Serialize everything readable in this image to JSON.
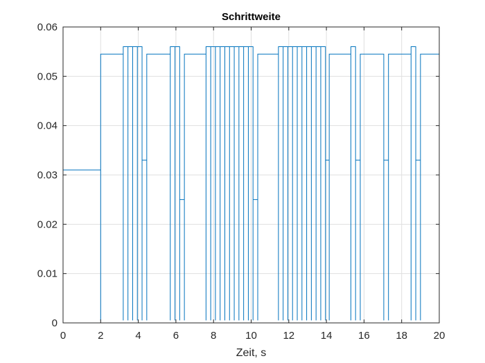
{
  "chart_data": {
    "type": "line",
    "title": "Schrittweite",
    "xlabel": "Zeit, s",
    "ylabel": "",
    "xlim": [
      0,
      20
    ],
    "ylim": [
      0,
      0.06
    ],
    "xticks": [
      0,
      2,
      4,
      6,
      8,
      10,
      12,
      14,
      16,
      18,
      20
    ],
    "yticks": [
      0,
      0.01,
      0.02,
      0.03,
      0.04,
      0.05,
      0.06
    ],
    "xtick_labels": [
      "0",
      "2",
      "4",
      "6",
      "8",
      "10",
      "12",
      "14",
      "16",
      "18",
      "20"
    ],
    "ytick_labels": [
      "0",
      "0.01",
      "0.02",
      "0.03",
      "0.04",
      "0.05",
      "0.06"
    ],
    "grid": true,
    "line_color": "#0072BD",
    "series": [
      {
        "x": [
          0,
          0,
          2.0,
          2.0,
          2.0,
          3.2,
          3.2,
          3.2,
          3.45,
          3.45,
          3.45,
          3.7,
          3.7,
          3.7,
          3.95,
          3.95,
          3.95,
          4.2,
          4.2,
          4.2,
          4.45,
          4.45,
          4.45,
          5.7,
          5.7,
          5.7,
          5.95,
          5.95,
          5.95,
          6.2,
          6.2,
          6.2,
          6.45,
          6.45,
          6.45,
          7.6,
          7.6,
          7.6,
          7.85,
          7.85,
          7.85,
          8.1,
          8.1,
          8.1,
          8.35,
          8.35,
          8.35,
          8.6,
          8.6,
          8.6,
          8.85,
          8.85,
          8.85,
          9.1,
          9.1,
          9.1,
          9.35,
          9.35,
          9.35,
          9.6,
          9.6,
          9.6,
          9.85,
          9.85,
          9.85,
          10.1,
          10.1,
          10.1,
          10.35,
          10.35,
          10.35,
          11.45,
          11.45,
          11.45,
          11.7,
          11.7,
          11.7,
          11.95,
          11.95,
          11.95,
          12.2,
          12.2,
          12.2,
          12.45,
          12.45,
          12.45,
          12.7,
          12.7,
          12.7,
          12.95,
          12.95,
          12.95,
          13.2,
          13.2,
          13.2,
          13.45,
          13.45,
          13.45,
          13.7,
          13.7,
          13.7,
          13.95,
          13.95,
          13.95,
          14.15,
          14.15,
          14.15,
          15.3,
          15.3,
          15.3,
          15.55,
          15.55,
          15.55,
          15.8,
          15.8,
          15.8,
          17.05,
          17.05,
          17.05,
          17.3,
          17.3,
          17.3,
          18.5,
          18.5,
          18.5,
          18.75,
          18.75,
          18.75,
          19.0,
          19.0,
          19.0,
          20
        ],
        "y": [
          0.01,
          0.031,
          0.031,
          0.0005,
          0.0545,
          0.0545,
          0.0005,
          0.056,
          0.056,
          0.0005,
          0.056,
          0.056,
          0.0005,
          0.056,
          0.056,
          0.0005,
          0.056,
          0.056,
          0.0005,
          0.033,
          0.033,
          0.0005,
          0.0545,
          0.0545,
          0.0005,
          0.056,
          0.056,
          0.0005,
          0.056,
          0.056,
          0.0005,
          0.025,
          0.025,
          0.0005,
          0.0545,
          0.0545,
          0.0005,
          0.056,
          0.056,
          0.0005,
          0.056,
          0.056,
          0.0005,
          0.056,
          0.056,
          0.0005,
          0.056,
          0.056,
          0.0005,
          0.056,
          0.056,
          0.0005,
          0.056,
          0.056,
          0.0005,
          0.056,
          0.056,
          0.0005,
          0.056,
          0.056,
          0.0005,
          0.056,
          0.056,
          0.0005,
          0.056,
          0.056,
          0.0005,
          0.025,
          0.025,
          0.0005,
          0.0545,
          0.0545,
          0.0005,
          0.056,
          0.056,
          0.0005,
          0.056,
          0.056,
          0.0005,
          0.056,
          0.056,
          0.0005,
          0.056,
          0.056,
          0.0005,
          0.056,
          0.056,
          0.0005,
          0.056,
          0.056,
          0.0005,
          0.056,
          0.056,
          0.0005,
          0.056,
          0.056,
          0.0005,
          0.056,
          0.056,
          0.0005,
          0.056,
          0.056,
          0.0005,
          0.033,
          0.033,
          0.0005,
          0.0545,
          0.0545,
          0.0005,
          0.056,
          0.056,
          0.0005,
          0.033,
          0.033,
          0.0005,
          0.0545,
          0.0545,
          0.0005,
          0.033,
          0.033,
          0.0005,
          0.0545,
          0.0545,
          0.0005,
          0.056,
          0.056,
          0.0005,
          0.033,
          0.033,
          0.0005,
          0.0545,
          0.0545
        ]
      }
    ]
  }
}
